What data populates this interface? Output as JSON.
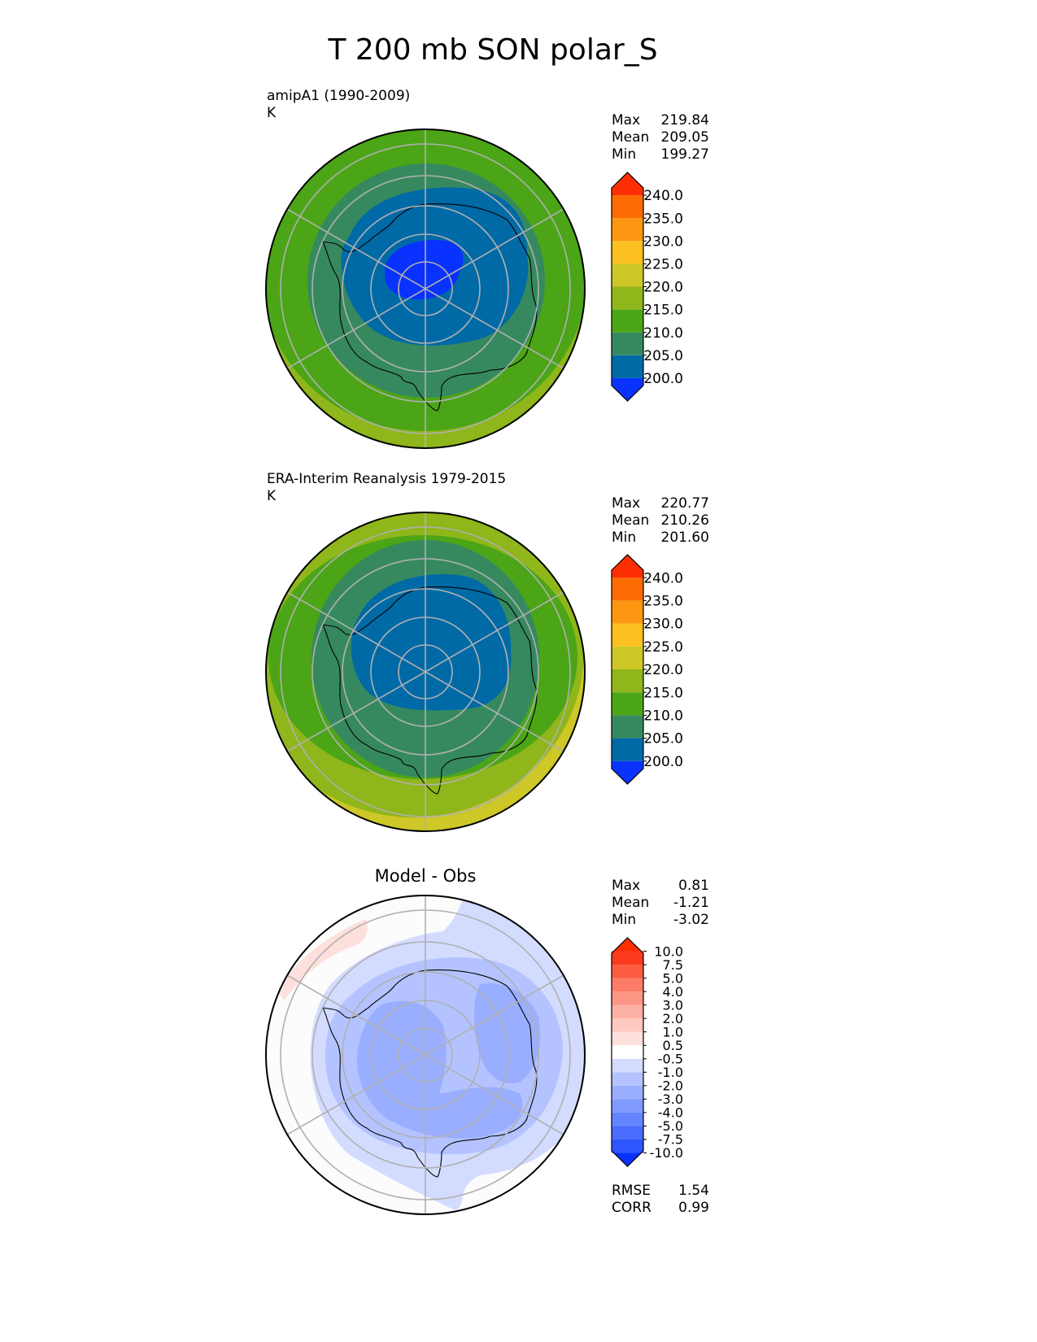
{
  "title": "T 200 mb SON polar_S",
  "chart_data": [
    {
      "type": "polar-contour-map",
      "projection": "south-polar-stereographic",
      "title_left": "amipA1 (1990-2009)",
      "units": "K",
      "stats": [
        {
          "label": "Max",
          "value": "219.84"
        },
        {
          "label": "Mean",
          "value": "209.05"
        },
        {
          "label": "Min",
          "value": "199.27"
        }
      ],
      "colorbar": {
        "levels": [
          "200.0",
          "205.0",
          "210.0",
          "215.0",
          "220.0",
          "225.0",
          "230.0",
          "235.0",
          "240.0"
        ],
        "colors": [
          "#0a32ff",
          "#006aa6",
          "#36895f",
          "#4ba517",
          "#8fb61a",
          "#cdc727",
          "#fcc021",
          "#fd9610",
          "#fd6b03",
          "#fd2f02"
        ],
        "extend": "both"
      },
      "field_bands_K": [
        {
          "range": "<200",
          "region": "pole interior"
        },
        {
          "range": "200-205",
          "region": "Antarctica"
        },
        {
          "range": "205-210",
          "region": "coastal ring"
        },
        {
          "range": "210-215",
          "region": "~55S ring"
        },
        {
          "range": "215-220",
          "region": "outer edge ~40S"
        }
      ]
    },
    {
      "type": "polar-contour-map",
      "projection": "south-polar-stereographic",
      "title_left": "ERA-Interim Reanalysis 1979-2015",
      "units": "K",
      "stats": [
        {
          "label": "Max",
          "value": "220.77"
        },
        {
          "label": "Mean",
          "value": "210.26"
        },
        {
          "label": "Min",
          "value": "201.60"
        }
      ],
      "colorbar": {
        "levels": [
          "200.0",
          "205.0",
          "210.0",
          "215.0",
          "220.0",
          "225.0",
          "230.0",
          "235.0",
          "240.0"
        ],
        "colors": [
          "#0a32ff",
          "#006aa6",
          "#36895f",
          "#4ba517",
          "#8fb61a",
          "#cdc727",
          "#fcc021",
          "#fd9610",
          "#fd6b03",
          "#fd2f02"
        ],
        "extend": "both"
      },
      "field_bands_K": [
        {
          "range": "200-205",
          "region": "Antarctica"
        },
        {
          "range": "205-210",
          "region": "coastal ring"
        },
        {
          "range": "210-215",
          "region": "~55S ring"
        },
        {
          "range": "215-220",
          "region": "outer edge"
        },
        {
          "range": "220-225",
          "region": "outer rim"
        }
      ]
    },
    {
      "type": "polar-contour-map",
      "projection": "south-polar-stereographic",
      "title_center": "Model - Obs",
      "stats": [
        {
          "label": "Max",
          "value": "0.81"
        },
        {
          "label": "Mean",
          "value": "-1.21"
        },
        {
          "label": "Min",
          "value": "-3.02"
        }
      ],
      "metrics": [
        {
          "label": "RMSE",
          "value": "1.54"
        },
        {
          "label": "CORR",
          "value": "0.99"
        }
      ],
      "colorbar": {
        "levels": [
          "-10.0",
          "-7.5",
          "-5.0",
          "-4.0",
          "-3.0",
          "-2.0",
          "-1.0",
          "-0.5",
          "0.5",
          "1.0",
          "2.0",
          "3.0",
          "4.0",
          "5.0",
          "7.5",
          "10.0"
        ],
        "colors": [
          "#0a32ff",
          "#2f55ff",
          "#4a6cff",
          "#6584ff",
          "#7f99ff",
          "#9aaeff",
          "#b4c3ff",
          "#d3dcff",
          "#ffffff",
          "#fde0dc",
          "#fec9c1",
          "#fdb0a4",
          "#fc9684",
          "#fc7c65",
          "#fb5c42",
          "#fb3a1e",
          "#fd2f02"
        ],
        "extend": "both"
      },
      "field_bands": [
        {
          "range": "-2 to -1",
          "region": "West Antarctica & East Antarctica interior"
        },
        {
          "range": "-1 to -0.5",
          "region": "surrounding ocean ring"
        },
        {
          "range": "-0.5 to 0.5",
          "region": "outer edge"
        },
        {
          "range": "0.5 to 1.0",
          "region": "small patch upper-left"
        }
      ]
    }
  ]
}
